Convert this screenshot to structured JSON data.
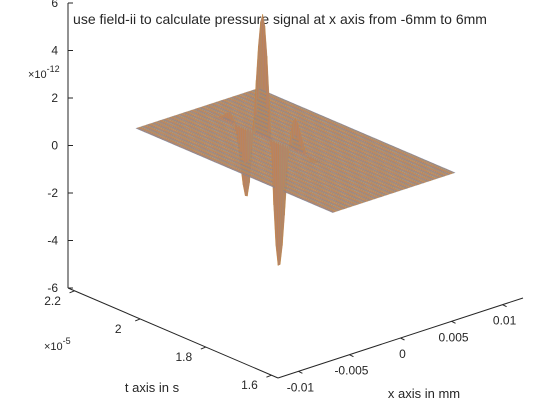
{
  "chart_data": {
    "type": "surface",
    "title": "use field-ii to calculate pressure signal at x axis from -6mm to 6mm",
    "xlabel": "x axis in mm",
    "ylabel": "t axis in s",
    "zlabel": "",
    "xlim": [
      -0.012,
      0.012
    ],
    "ylim": [
      1.58e-05,
      2.22e-05
    ],
    "zlim": [
      -6e-12,
      6e-12
    ],
    "x_ticks": [
      {
        "value": -0.01,
        "label": "-0.01"
      },
      {
        "value": -0.005,
        "label": "-0.005"
      },
      {
        "value": 0,
        "label": "0"
      },
      {
        "value": 0.005,
        "label": "0.005"
      },
      {
        "value": 0.01,
        "label": "0.01"
      }
    ],
    "y_ticks": [
      {
        "value": 1.6e-05,
        "label": "1.6"
      },
      {
        "value": 1.8e-05,
        "label": "1.8"
      },
      {
        "value": 2e-05,
        "label": "2"
      },
      {
        "value": 2.2e-05,
        "label": "2.2"
      }
    ],
    "z_ticks": [
      {
        "value": -6e-12,
        "label": "-6"
      },
      {
        "value": -4e-12,
        "label": "-4"
      },
      {
        "value": -2e-12,
        "label": "-2"
      },
      {
        "value": 0,
        "label": "0"
      },
      {
        "value": 2e-12,
        "label": "2"
      },
      {
        "value": 4e-12,
        "label": "4"
      },
      {
        "value": 6e-12,
        "label": "6"
      }
    ],
    "y_exponent_label": "×10",
    "y_exponent": "-5",
    "z_exponent_label": "×10",
    "z_exponent": "-12",
    "x_range_mm": [
      -6,
      6
    ],
    "pressure_peak_max": 4.5e-12,
    "pressure_peak_min": -5.5e-12,
    "colors": {
      "surface": "#b48468",
      "mesh_a": "#4f86c6",
      "mesh_b": "#d9822b",
      "mesh_c": "#9aa36f",
      "axis": "#262626",
      "grid": "#e6e6e6"
    },
    "grid": false
  }
}
